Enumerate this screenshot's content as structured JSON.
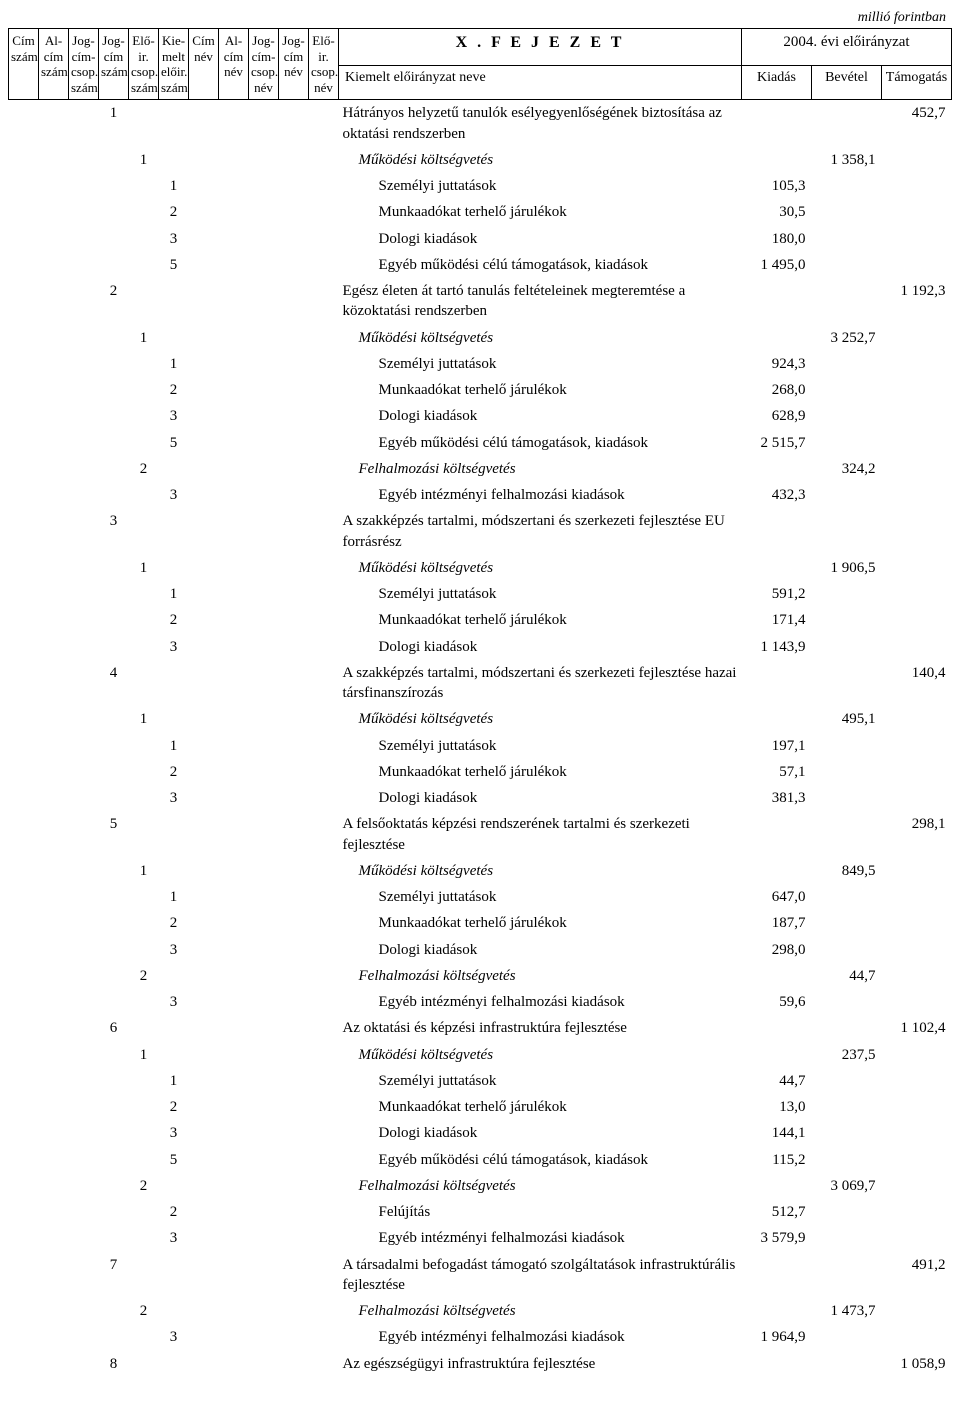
{
  "unit": "millió forintban",
  "header": {
    "cols": [
      "Cím szám",
      "Al-cím szám",
      "Jog-cím-csop. szám",
      "Jog-cím szám",
      "Elő-ir. csop. szám",
      "Kie-melt előir. szám",
      "Cím név",
      "Al-cím név",
      "Jog-cím-csop. név",
      "Jog-cím név",
      "Elő-ir. csop. név"
    ],
    "chapter": "X . F E J E Z E T",
    "year": "2004. évi előirányzat",
    "kiemelt": "Kiemelt előirányzat neve",
    "kiadas": "Kiadás",
    "bevetel": "Bevétel",
    "tamogatas": "Támogatás"
  },
  "rows": [
    {
      "c4": "1",
      "name": "Hátrányos helyzetű tanulók esélyegyenlőségének biztosítása az oktatási rendszerben",
      "tamogatas": "452,7",
      "nameIndent": 0
    },
    {
      "c5": "1",
      "name": "Működési költségvetés",
      "bevetel": "1 358,1",
      "italic": true,
      "nameIndent": 1
    },
    {
      "c6": "1",
      "name": "Személyi juttatások",
      "kiadas": "105,3",
      "nameIndent": 2
    },
    {
      "c6": "2",
      "name": "Munkaadókat terhelő járulékok",
      "kiadas": "30,5",
      "nameIndent": 2
    },
    {
      "c6": "3",
      "name": "Dologi kiadások",
      "kiadas": "180,0",
      "nameIndent": 2
    },
    {
      "c6": "5",
      "name": "Egyéb működési célú támogatások, kiadások",
      "kiadas": "1 495,0",
      "nameIndent": 2
    },
    {
      "c4": "2",
      "name": "Egész életen át tartó tanulás feltételeinek megteremtése a közoktatási rendszerben",
      "tamogatas": "1 192,3",
      "nameIndent": 0
    },
    {
      "c5": "1",
      "name": "Működési költségvetés",
      "bevetel": "3 252,7",
      "italic": true,
      "nameIndent": 1
    },
    {
      "c6": "1",
      "name": "Személyi juttatások",
      "kiadas": "924,3",
      "nameIndent": 2
    },
    {
      "c6": "2",
      "name": "Munkaadókat terhelő járulékok",
      "kiadas": "268,0",
      "nameIndent": 2
    },
    {
      "c6": "3",
      "name": "Dologi kiadások",
      "kiadas": "628,9",
      "nameIndent": 2
    },
    {
      "c6": "5",
      "name": "Egyéb működési célú támogatások, kiadások",
      "kiadas": "2 515,7",
      "nameIndent": 2
    },
    {
      "c5": "2",
      "name": "Felhalmozási költségvetés",
      "bevetel": "324,2",
      "italic": true,
      "nameIndent": 1
    },
    {
      "c6": "3",
      "name": "Egyéb intézményi felhalmozási kiadások",
      "kiadas": "432,3",
      "nameIndent": 2
    },
    {
      "c4": "3",
      "name": "A szakképzés tartalmi, módszertani és szerkezeti fejlesztése EU forrásrész",
      "nameIndent": 0
    },
    {
      "c5": "1",
      "name": "Működési költségvetés",
      "bevetel": "1 906,5",
      "italic": true,
      "nameIndent": 1
    },
    {
      "c6": "1",
      "name": "Személyi juttatások",
      "kiadas": "591,2",
      "nameIndent": 2
    },
    {
      "c6": "2",
      "name": "Munkaadókat terhelő járulékok",
      "kiadas": "171,4",
      "nameIndent": 2
    },
    {
      "c6": "3",
      "name": "Dologi kiadások",
      "kiadas": "1 143,9",
      "nameIndent": 2
    },
    {
      "c4": "4",
      "name": "A szakképzés tartalmi, módszertani és szerkezeti fejlesztése hazai társfinanszírozás",
      "tamogatas": "140,4",
      "nameIndent": 0
    },
    {
      "c5": "1",
      "name": "Működési költségvetés",
      "bevetel": "495,1",
      "italic": true,
      "nameIndent": 1
    },
    {
      "c6": "1",
      "name": "Személyi juttatások",
      "kiadas": "197,1",
      "nameIndent": 2
    },
    {
      "c6": "2",
      "name": "Munkaadókat terhelő járulékok",
      "kiadas": "57,1",
      "nameIndent": 2
    },
    {
      "c6": "3",
      "name": "Dologi kiadások",
      "kiadas": "381,3",
      "nameIndent": 2
    },
    {
      "c4": "5",
      "name": "A felsőoktatás képzési rendszerének tartalmi és szerkezeti fejlesztése",
      "tamogatas": "298,1",
      "nameIndent": 0
    },
    {
      "c5": "1",
      "name": "Működési költségvetés",
      "bevetel": "849,5",
      "italic": true,
      "nameIndent": 1
    },
    {
      "c6": "1",
      "name": "Személyi juttatások",
      "kiadas": "647,0",
      "nameIndent": 2
    },
    {
      "c6": "2",
      "name": "Munkaadókat terhelő járulékok",
      "kiadas": "187,7",
      "nameIndent": 2
    },
    {
      "c6": "3",
      "name": "Dologi kiadások",
      "kiadas": "298,0",
      "nameIndent": 2
    },
    {
      "c5": "2",
      "name": "Felhalmozási költségvetés",
      "bevetel": "44,7",
      "italic": true,
      "nameIndent": 1
    },
    {
      "c6": "3",
      "name": "Egyéb intézményi felhalmozási kiadások",
      "kiadas": "59,6",
      "nameIndent": 2
    },
    {
      "c4": "6",
      "name": "Az oktatási és képzési infrastruktúra fejlesztése",
      "tamogatas": "1 102,4",
      "nameIndent": 0
    },
    {
      "c5": "1",
      "name": "Működési költségvetés",
      "bevetel": "237,5",
      "italic": true,
      "nameIndent": 1
    },
    {
      "c6": "1",
      "name": "Személyi juttatások",
      "kiadas": "44,7",
      "nameIndent": 2
    },
    {
      "c6": "2",
      "name": "Munkaadókat terhelő járulékok",
      "kiadas": "13,0",
      "nameIndent": 2
    },
    {
      "c6": "3",
      "name": "Dologi kiadások",
      "kiadas": "144,1",
      "nameIndent": 2
    },
    {
      "c6": "5",
      "name": "Egyéb működési célú támogatások, kiadások",
      "kiadas": "115,2",
      "nameIndent": 2
    },
    {
      "c5": "2",
      "name": "Felhalmozási költségvetés",
      "bevetel": "3 069,7",
      "italic": true,
      "nameIndent": 1
    },
    {
      "c6": "2",
      "name": "Felújítás",
      "kiadas": "512,7",
      "nameIndent": 2
    },
    {
      "c6": "3",
      "name": "Egyéb intézményi felhalmozási kiadások",
      "kiadas": "3 579,9",
      "nameIndent": 2
    },
    {
      "c4": "7",
      "name": "A társadalmi befogadást támogató szolgáltatások infrastruktúrális fejlesztése",
      "tamogatas": "491,2",
      "nameIndent": 0
    },
    {
      "c5": "2",
      "name": "Felhalmozási költségvetés",
      "bevetel": "1 473,7",
      "italic": true,
      "nameIndent": 1
    },
    {
      "c6": "3",
      "name": "Egyéb intézményi felhalmozási kiadások",
      "kiadas": "1 964,9",
      "nameIndent": 2
    },
    {
      "c4": "8",
      "name": "Az egészségügyi infrastruktúra fejlesztése",
      "tamogatas": "1 058,9",
      "nameIndent": 0
    }
  ]
}
